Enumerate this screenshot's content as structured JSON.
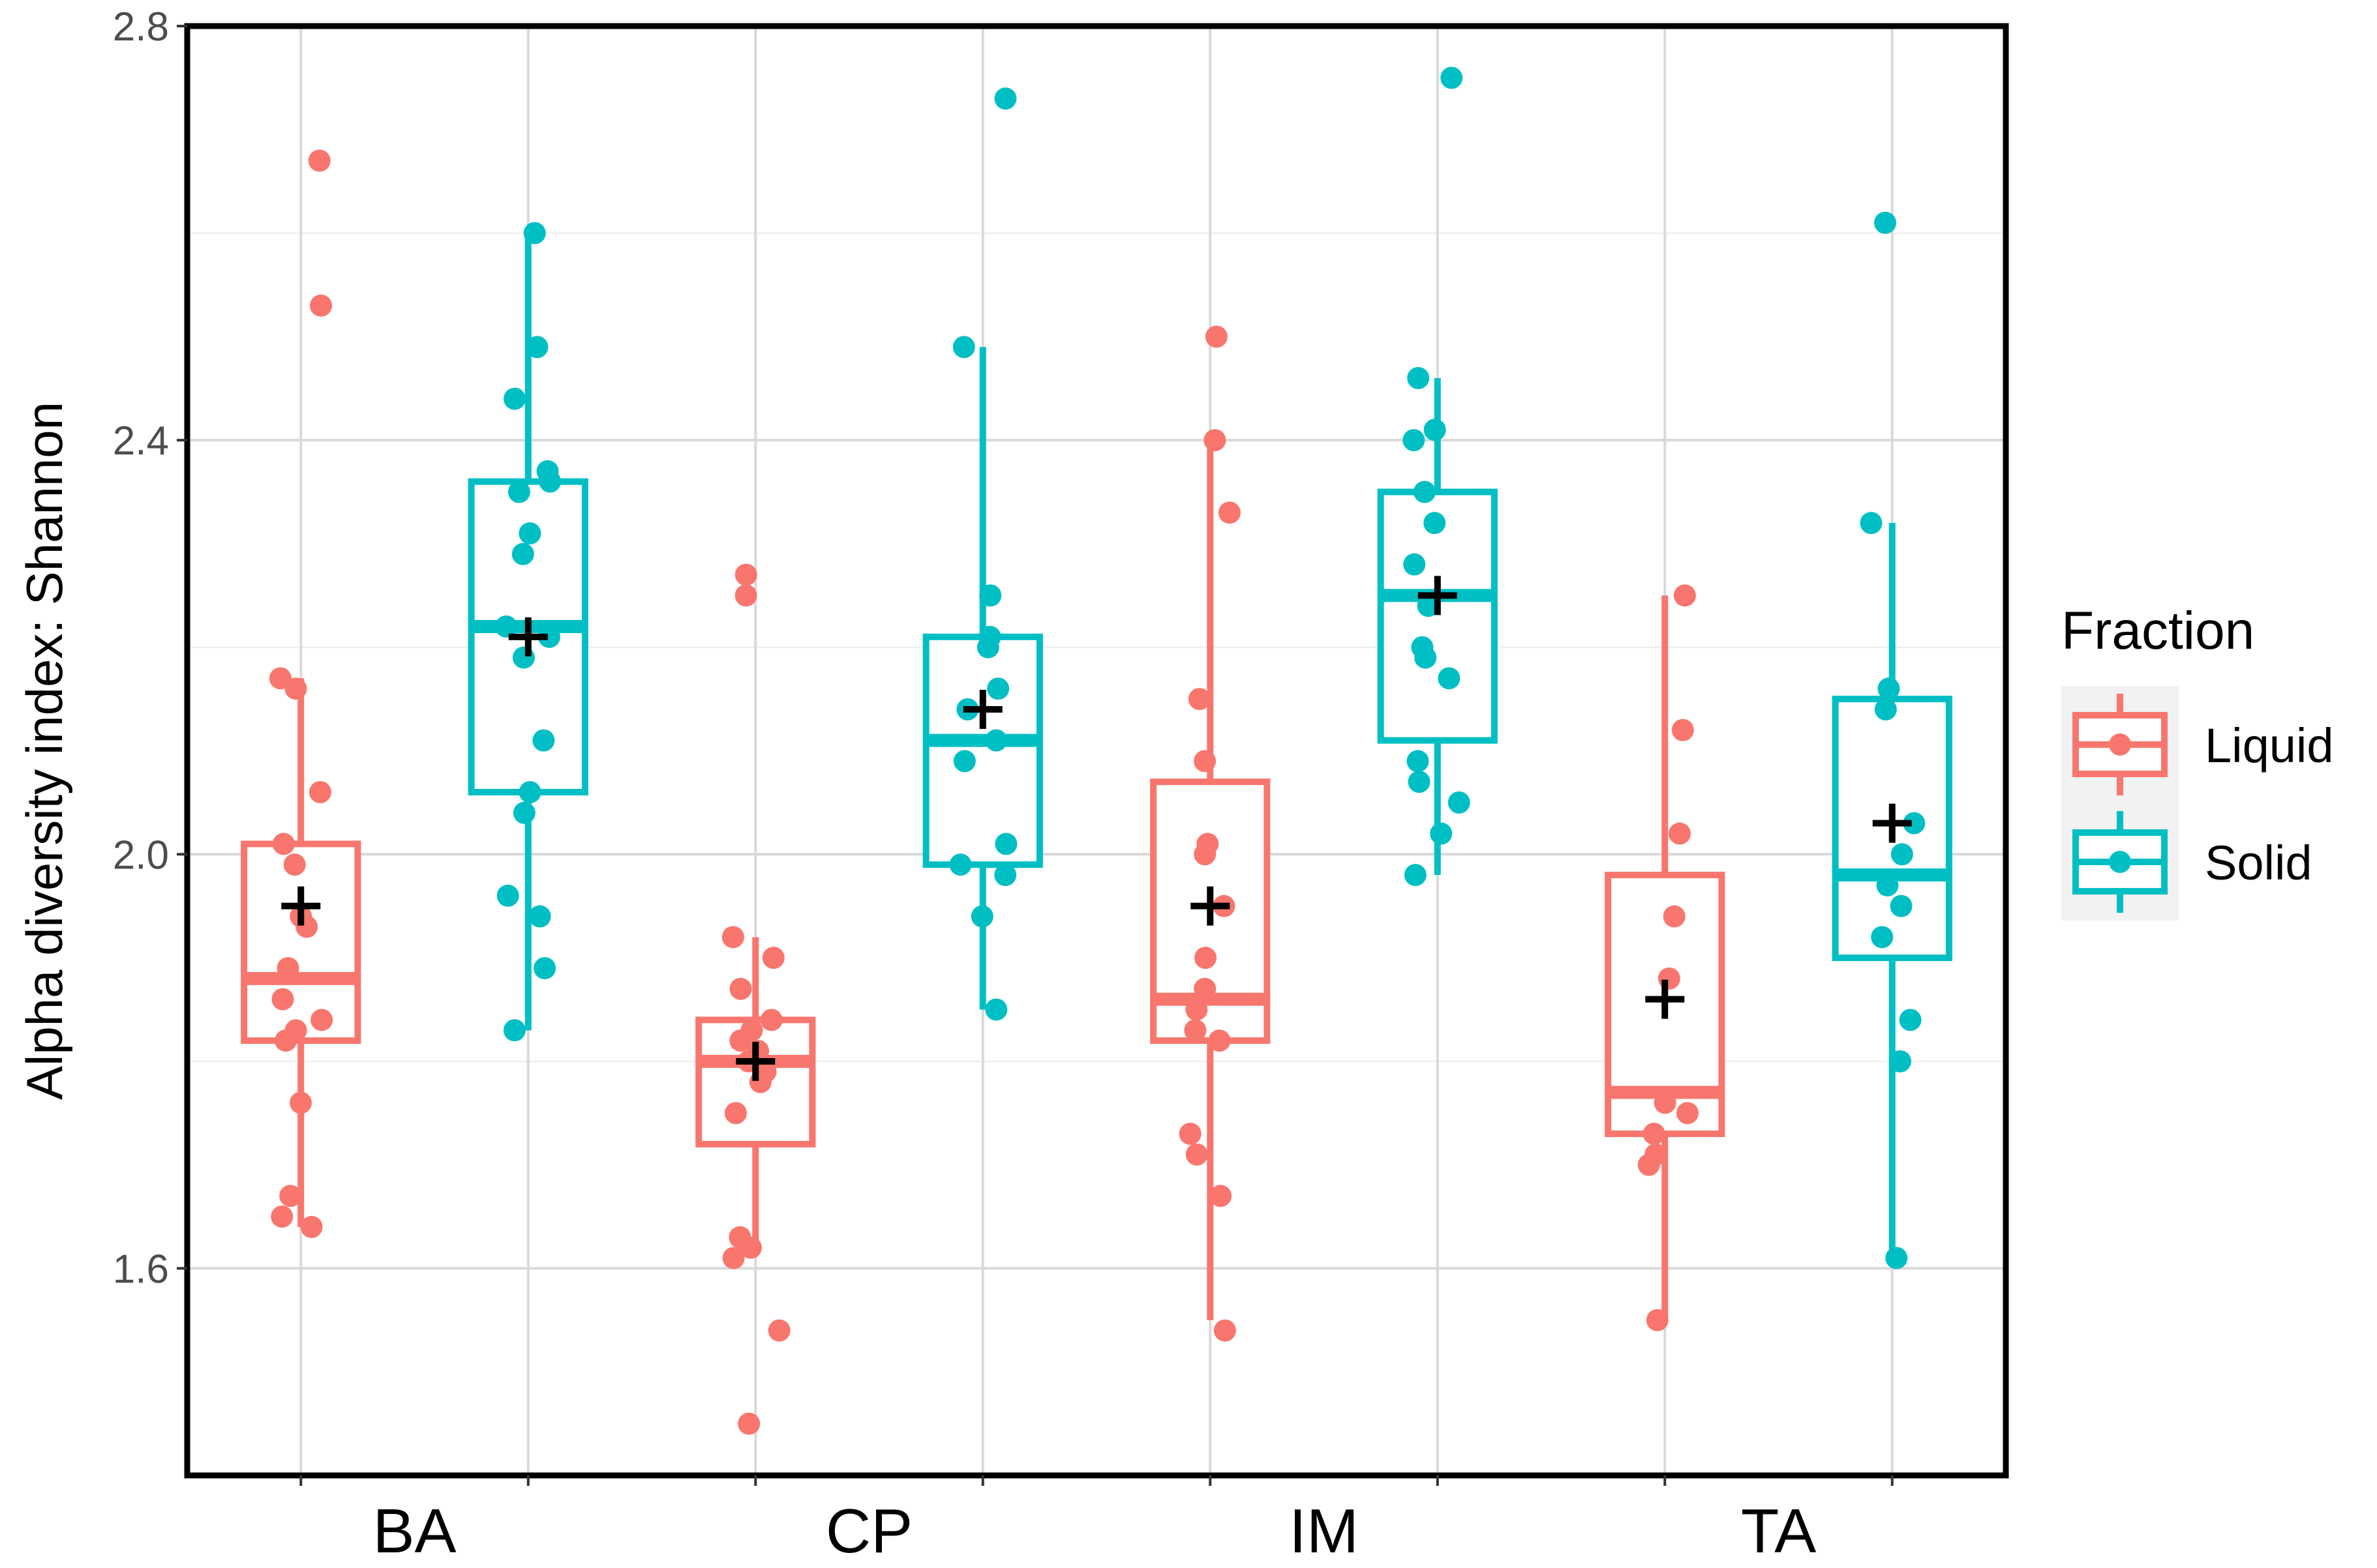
{
  "chart_data": {
    "type": "box",
    "title": "",
    "xlabel": "",
    "ylabel": "Alpha diversity index: Shannon",
    "ylim": [
      1.4,
      2.8
    ],
    "y_ticks": [
      "1.6",
      "2.0",
      "2.4",
      "2.8"
    ],
    "grid": true,
    "categories": [
      "BA",
      "CP",
      "IM",
      "TA"
    ],
    "legend": {
      "title": "Fraction",
      "placement": "right",
      "entries": [
        "Liquid",
        "Solid"
      ]
    },
    "colors": {
      "Liquid": "#f8766d",
      "Solid": "#00bfc4",
      "mean_marker": "#000000"
    },
    "series": [
      {
        "name": "Liquid",
        "boxes": [
          {
            "category": "BA",
            "min": 1.64,
            "q1": 1.82,
            "median": 1.88,
            "q3": 2.01,
            "max": 2.17,
            "mean": 1.95,
            "points": [
              2.67,
              2.53,
              2.17,
              2.16,
              2.06,
              2.01,
              1.99,
              1.94,
              1.93,
              1.89,
              1.86,
              1.84,
              1.83,
              1.82,
              1.76,
              1.67,
              1.65,
              1.64
            ]
          },
          {
            "category": "CP",
            "min": 1.62,
            "q1": 1.72,
            "median": 1.8,
            "q3": 1.84,
            "max": 1.92,
            "mean": 1.8,
            "points": [
              2.27,
              2.25,
              1.92,
              1.9,
              1.87,
              1.84,
              1.83,
              1.82,
              1.81,
              1.8,
              1.79,
              1.78,
              1.75,
              1.63,
              1.62,
              1.61,
              1.54,
              1.45
            ]
          },
          {
            "category": "IM",
            "min": 1.55,
            "q1": 1.82,
            "median": 1.86,
            "q3": 2.07,
            "max": 2.4,
            "mean": 1.95,
            "points": [
              2.5,
              2.4,
              2.33,
              2.15,
              2.09,
              2.01,
              2.0,
              1.95,
              1.9,
              1.87,
              1.85,
              1.83,
              1.82,
              1.73,
              1.71,
              1.67,
              1.54
            ]
          },
          {
            "category": "TA",
            "min": 1.55,
            "q1": 1.73,
            "median": 1.77,
            "q3": 1.98,
            "max": 2.25,
            "mean": 1.86,
            "points": [
              2.25,
              2.12,
              2.02,
              1.94,
              1.88,
              1.76,
              1.75,
              1.73,
              1.71,
              1.7,
              1.55
            ]
          }
        ]
      },
      {
        "name": "Solid",
        "boxes": [
          {
            "category": "BA",
            "min": 1.83,
            "q1": 2.06,
            "median": 2.22,
            "q3": 2.36,
            "max": 2.6,
            "mean": 2.21,
            "points": [
              2.6,
              2.49,
              2.44,
              2.37,
              2.36,
              2.35,
              2.31,
              2.29,
              2.22,
              2.21,
              2.19,
              2.11,
              2.06,
              2.04,
              1.96,
              1.94,
              1.89,
              1.83
            ]
          },
          {
            "category": "CP",
            "min": 1.85,
            "q1": 1.99,
            "median": 2.11,
            "q3": 2.21,
            "max": 2.49,
            "mean": 2.14,
            "points": [
              2.73,
              2.49,
              2.25,
              2.21,
              2.2,
              2.16,
              2.14,
              2.11,
              2.09,
              2.01,
              1.99,
              1.98,
              1.94,
              1.85
            ]
          },
          {
            "category": "IM",
            "min": 1.98,
            "q1": 2.11,
            "median": 2.25,
            "q3": 2.35,
            "max": 2.46,
            "mean": 2.25,
            "points": [
              2.75,
              2.46,
              2.41,
              2.4,
              2.35,
              2.32,
              2.28,
              2.24,
              2.2,
              2.19,
              2.17,
              2.09,
              2.07,
              2.05,
              2.02,
              1.98
            ]
          },
          {
            "category": "TA",
            "min": 1.61,
            "q1": 1.9,
            "median": 1.98,
            "q3": 2.15,
            "max": 2.32,
            "mean": 2.03,
            "points": [
              2.61,
              2.32,
              2.16,
              2.14,
              2.03,
              2.0,
              1.97,
              1.95,
              1.92,
              1.84,
              1.8,
              1.61
            ]
          }
        ]
      }
    ]
  }
}
